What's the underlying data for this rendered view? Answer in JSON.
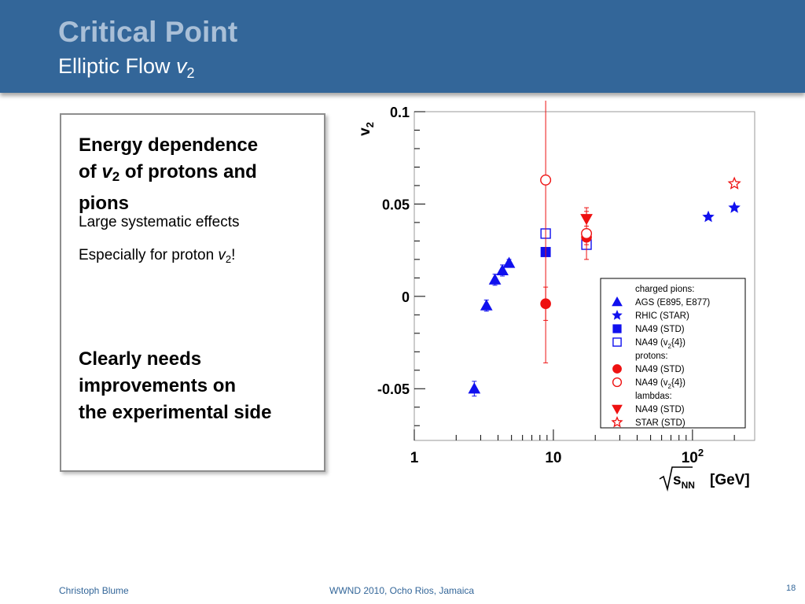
{
  "header": {
    "title": "Critical Point",
    "subtitle_prefix": "Elliptic Flow ",
    "subtitle_var": "v",
    "subtitle_sub": "2"
  },
  "textbox": {
    "heading1_line1": "Energy dependence",
    "heading1_line2_prefix": "of ",
    "heading1_var": "v",
    "heading1_sub": "2",
    "heading1_line2_suffix": " of protons and",
    "heading1_line3": "pions",
    "bullet1": "Large systematic effects",
    "bullet2_prefix": "Especially for proton ",
    "bullet2_var": "v",
    "bullet2_sub": "2",
    "bullet2_suffix": "!",
    "heading2_line1": "Clearly needs",
    "heading2_line2": "improvements on",
    "heading2_line3": "the experimental side"
  },
  "footer": {
    "author": "Christoph Blume",
    "event": "WWND 2010, Ocho Rios, Jamaica",
    "page": "18"
  },
  "colors": {
    "header_bg": "#336699",
    "title": "#a9bfd7",
    "blue": "#1010ee",
    "red": "#ee1111",
    "footer_text": "#336699"
  },
  "chart_data": {
    "type": "scatter",
    "x_scale": "log",
    "xlim": [
      1,
      280
    ],
    "ylim": [
      -0.078,
      0.1
    ],
    "x_ticks": [
      {
        "v": 1,
        "label": "1"
      },
      {
        "v": 10,
        "label": "10"
      },
      {
        "v": 100,
        "label": "10",
        "sup": "2"
      }
    ],
    "y_ticks": [
      {
        "v": 0.1,
        "label": "0.1"
      },
      {
        "v": 0.05,
        "label": "0.05"
      },
      {
        "v": 0,
        "label": "0"
      },
      {
        "v": -0.05,
        "label": "-0.05"
      }
    ],
    "ylabel": {
      "main": "v",
      "sub": "2"
    },
    "xlabel": {
      "main": "s",
      "sub": "NN",
      "unit": "[GeV]"
    },
    "legend": {
      "position": "bottom-right",
      "groups": [
        {
          "title": "charged pions:",
          "entries": [
            {
              "label": "AGS (E895, E877)",
              "series": 0
            },
            {
              "label": "RHIC (STAR)",
              "series": 1
            },
            {
              "label": "NA49 (STD)",
              "series": 2
            },
            {
              "label": "NA49 (v",
              "sub": "2",
              "after": "{4})",
              "series": 3
            }
          ]
        },
        {
          "title": "protons:",
          "entries": [
            {
              "label": "NA49 (STD)",
              "series": 4
            },
            {
              "label": "NA49 (v",
              "sub": "2",
              "after": "{4})",
              "series": 5
            }
          ]
        },
        {
          "title": "lambdas:",
          "entries": [
            {
              "label": "NA49 (STD)",
              "series": 6
            },
            {
              "label": "STAR (STD)",
              "series": 7
            }
          ]
        }
      ]
    },
    "series": [
      {
        "name": "AGS (E895, E877)",
        "group": "charged pions",
        "marker": "triangle-up",
        "filled": true,
        "color": "#1010ee",
        "points": [
          {
            "x": 2.7,
            "y": -0.05,
            "err": 0.004
          },
          {
            "x": 3.3,
            "y": -0.005,
            "err": 0.003
          },
          {
            "x": 3.8,
            "y": 0.009,
            "err": 0.003
          },
          {
            "x": 4.3,
            "y": 0.014,
            "err": 0.003
          },
          {
            "x": 4.8,
            "y": 0.018,
            "err": 0.002
          }
        ]
      },
      {
        "name": "RHIC (STAR)",
        "group": "charged pions",
        "marker": "star",
        "filled": true,
        "color": "#1010ee",
        "points": [
          {
            "x": 130,
            "y": 0.043,
            "err": 0
          },
          {
            "x": 200,
            "y": 0.048,
            "err": 0
          }
        ]
      },
      {
        "name": "NA49 (STD)",
        "group": "charged pions",
        "marker": "square",
        "filled": true,
        "color": "#1010ee",
        "points": [
          {
            "x": 8.8,
            "y": 0.024,
            "err": 0.001
          },
          {
            "x": 17.3,
            "y": 0.029,
            "err": 0.001
          }
        ]
      },
      {
        "name": "NA49 (v2{4})",
        "group": "charged pions",
        "marker": "square",
        "filled": false,
        "color": "#1010ee",
        "points": [
          {
            "x": 8.8,
            "y": 0.034,
            "err": 0.002
          },
          {
            "x": 17.3,
            "y": 0.028,
            "err": 0.002
          }
        ]
      },
      {
        "name": "NA49 (STD)",
        "group": "protons",
        "marker": "circle",
        "filled": true,
        "color": "#ee1111",
        "points": [
          {
            "x": 8.8,
            "y": -0.004,
            "err": 0.009
          },
          {
            "x": 17.3,
            "y": 0.032,
            "err": 0.004
          }
        ]
      },
      {
        "name": "NA49 (v2{4})",
        "group": "protons",
        "marker": "circle",
        "filled": false,
        "color": "#ee1111",
        "points": [
          {
            "x": 8.8,
            "y": 0.063,
            "err": 0.099
          },
          {
            "x": 17.3,
            "y": 0.034,
            "err": 0.014
          }
        ]
      },
      {
        "name": "NA49 (STD)",
        "group": "lambdas",
        "marker": "triangle-down",
        "filled": true,
        "color": "#ee1111",
        "points": [
          {
            "x": 17.3,
            "y": 0.042,
            "err": 0.004
          }
        ]
      },
      {
        "name": "STAR (STD)",
        "group": "lambdas",
        "marker": "star",
        "filled": false,
        "color": "#ee1111",
        "points": [
          {
            "x": 200,
            "y": 0.061,
            "err": 0
          }
        ]
      }
    ]
  }
}
